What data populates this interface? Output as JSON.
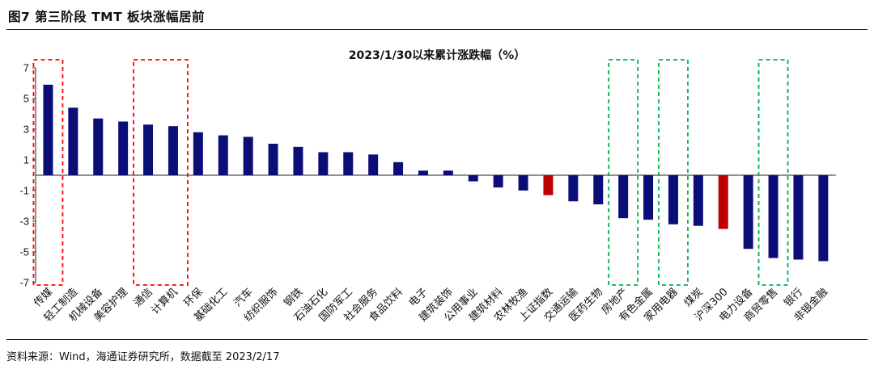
{
  "figure": {
    "title": "图7  第三阶段 TMT 板块涨幅居前",
    "source": "资料来源：Wind，海通证券研究所，数据截至 2023/2/17"
  },
  "chart_data": {
    "type": "bar",
    "title": "2023/1/30以来累计涨跌幅（%）",
    "xlabel": "",
    "ylabel": "",
    "ylim": [
      -7,
      7
    ],
    "yticks": [
      7,
      5,
      3,
      1,
      -1,
      -3,
      -5,
      -7
    ],
    "grid": false,
    "categories": [
      "传媒",
      "轻工制造",
      "机械设备",
      "美容护理",
      "通信",
      "计算机",
      "环保",
      "基础化工",
      "汽车",
      "纺织服饰",
      "钢铁",
      "石油石化",
      "国防军工",
      "社会服务",
      "食品饮料",
      "电子",
      "建筑装饰",
      "公用事业",
      "建筑材料",
      "农林牧渔",
      "上证指数",
      "交通运输",
      "医药生物",
      "房地产",
      "有色金属",
      "家用电器",
      "煤炭",
      "沪深300",
      "电力设备",
      "商贸零售",
      "银行",
      "非银金融"
    ],
    "values": [
      5.9,
      4.4,
      3.7,
      3.5,
      3.3,
      3.2,
      2.8,
      2.6,
      2.5,
      2.05,
      1.85,
      1.5,
      1.5,
      1.35,
      0.85,
      0.3,
      0.3,
      -0.4,
      -0.8,
      -1.0,
      -1.3,
      -1.7,
      -1.9,
      -2.8,
      -2.9,
      -3.2,
      -3.3,
      -3.5,
      -4.8,
      -5.4,
      -5.5,
      -5.6
    ],
    "colors": {
      "bar": "#0c0e78",
      "highlight_bar": "#c00000",
      "red_box": "#ff0000",
      "green_box": "#00b050"
    },
    "highlight_categories": [
      "上证指数",
      "沪深300"
    ],
    "red_boxes": [
      [
        "传媒",
        "传媒"
      ],
      [
        "通信",
        "计算机"
      ]
    ],
    "green_boxes": [
      [
        "房地产",
        "房地产"
      ],
      [
        "家用电器",
        "家用电器"
      ],
      [
        "商贸零售",
        "商贸零售"
      ]
    ]
  }
}
